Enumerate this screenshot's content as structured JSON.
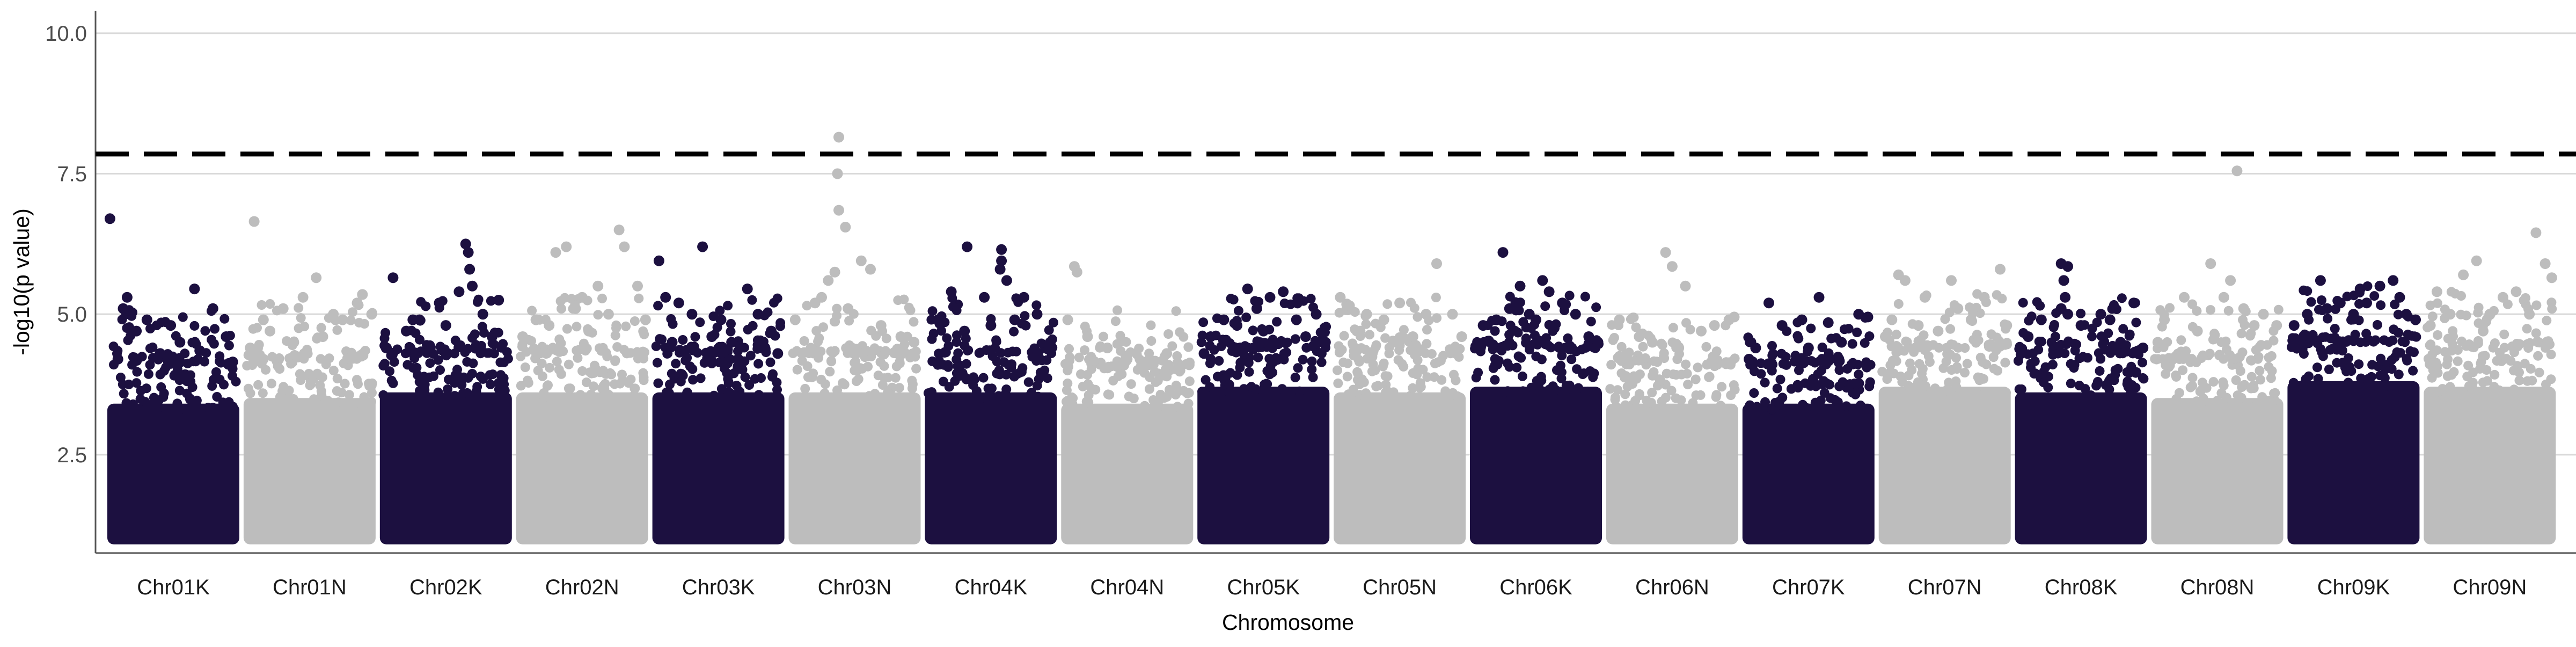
{
  "chart_data": {
    "type": "scatter",
    "title": "",
    "xlabel": "Chromosome",
    "ylabel": "-log10(p value)",
    "ylim": [
      0.75,
      10.4
    ],
    "yticks": [
      2.5,
      5.0,
      7.5,
      10.0
    ],
    "ytick_labels": [
      "2.5",
      "5.0",
      "7.5",
      "10.0"
    ],
    "grid": {
      "horizontal": true,
      "vertical": false
    },
    "legend": "none",
    "colors": {
      "odd": "#1c1040",
      "even": "#bdbdbd",
      "threshold": "#000000",
      "grid": "#d9d9d9",
      "axis": "#555555"
    },
    "threshold": {
      "value": 7.85,
      "style": "dashed"
    },
    "categories": [
      "Chr01K",
      "Chr01N",
      "Chr02K",
      "Chr02N",
      "Chr03K",
      "Chr03N",
      "Chr04K",
      "Chr04N",
      "Chr05K",
      "Chr05N",
      "Chr06K",
      "Chr06N",
      "Chr07K",
      "Chr07N",
      "Chr08K",
      "Chr08N",
      "Chr09K",
      "Chr09N"
    ],
    "series": [
      {
        "chromosome": "Chr01K",
        "min": 1.0,
        "dense_top": 3.6,
        "points": [
          [
            0.02,
            6.7
          ],
          [
            0.15,
            5.3
          ],
          [
            0.12,
            5.1
          ],
          [
            0.3,
            4.9
          ],
          [
            0.48,
            4.8
          ],
          [
            0.66,
            5.45
          ],
          [
            0.8,
            5.1
          ],
          [
            0.9,
            4.6
          ],
          [
            0.55,
            4.5
          ],
          [
            0.22,
            4.7
          ],
          [
            0.4,
            4.3
          ],
          [
            0.7,
            4.35
          ],
          [
            0.08,
            4.2
          ],
          [
            0.95,
            4.15
          ]
        ]
      },
      {
        "chromosome": "Chr01N",
        "min": 1.0,
        "dense_top": 3.7,
        "points": [
          [
            0.08,
            6.65
          ],
          [
            0.15,
            4.9
          ],
          [
            0.3,
            5.1
          ],
          [
            0.45,
            5.3
          ],
          [
            0.55,
            5.65
          ],
          [
            0.68,
            5.0
          ],
          [
            0.75,
            4.9
          ],
          [
            0.86,
            5.2
          ],
          [
            0.9,
            5.35
          ],
          [
            0.97,
            5.0
          ],
          [
            0.2,
            4.7
          ],
          [
            0.6,
            4.6
          ],
          [
            0.38,
            4.5
          ],
          [
            0.05,
            4.4
          ]
        ]
      },
      {
        "chromosome": "Chr02K",
        "min": 1.0,
        "dense_top": 3.8,
        "points": [
          [
            0.1,
            5.65
          ],
          [
            0.3,
            4.9
          ],
          [
            0.45,
            5.2
          ],
          [
            0.6,
            5.4
          ],
          [
            0.65,
            6.25
          ],
          [
            0.67,
            6.1
          ],
          [
            0.68,
            5.8
          ],
          [
            0.7,
            5.5
          ],
          [
            0.78,
            5.0
          ],
          [
            0.9,
            5.25
          ],
          [
            0.2,
            4.7
          ],
          [
            0.25,
            4.9
          ],
          [
            0.5,
            4.8
          ],
          [
            0.85,
            4.6
          ],
          [
            0.05,
            4.4
          ]
        ]
      },
      {
        "chromosome": "Chr02N",
        "min": 1.0,
        "dense_top": 3.8,
        "points": [
          [
            0.3,
            6.1
          ],
          [
            0.38,
            6.2
          ],
          [
            0.5,
            5.3
          ],
          [
            0.62,
            5.5
          ],
          [
            0.78,
            6.5
          ],
          [
            0.82,
            6.2
          ],
          [
            0.92,
            5.5
          ],
          [
            0.15,
            4.9
          ],
          [
            0.45,
            5.1
          ],
          [
            0.7,
            5.0
          ],
          [
            0.98,
            4.9
          ],
          [
            0.05,
            4.6
          ],
          [
            0.55,
            4.7
          ],
          [
            0.25,
            4.8
          ]
        ]
      },
      {
        "chromosome": "Chr03K",
        "min": 1.0,
        "dense_top": 3.8,
        "points": [
          [
            0.05,
            5.95
          ],
          [
            0.38,
            6.2
          ],
          [
            0.1,
            5.3
          ],
          [
            0.2,
            5.2
          ],
          [
            0.3,
            5.0
          ],
          [
            0.52,
            4.9
          ],
          [
            0.72,
            5.45
          ],
          [
            0.8,
            5.0
          ],
          [
            0.9,
            4.7
          ],
          [
            0.15,
            4.5
          ],
          [
            0.45,
            4.6
          ],
          [
            0.6,
            4.5
          ],
          [
            0.95,
            4.3
          ],
          [
            0.65,
            4.2
          ]
        ]
      },
      {
        "chromosome": "Chr03N",
        "min": 1.0,
        "dense_top": 3.8,
        "points": [
          [
            0.38,
            8.15
          ],
          [
            0.37,
            7.5
          ],
          [
            0.38,
            6.85
          ],
          [
            0.43,
            6.55
          ],
          [
            0.35,
            5.75
          ],
          [
            0.3,
            5.6
          ],
          [
            0.55,
            5.95
          ],
          [
            0.62,
            5.8
          ],
          [
            0.2,
            5.2
          ],
          [
            0.25,
            5.3
          ],
          [
            0.45,
            5.1
          ],
          [
            0.05,
            4.9
          ],
          [
            0.7,
            4.8
          ],
          [
            0.85,
            4.6
          ],
          [
            0.95,
            4.5
          ]
        ]
      },
      {
        "chromosome": "Chr04K",
        "min": 1.0,
        "dense_top": 3.8,
        "points": [
          [
            0.32,
            6.2
          ],
          [
            0.58,
            6.15
          ],
          [
            0.58,
            5.95
          ],
          [
            0.57,
            5.8
          ],
          [
            0.62,
            5.6
          ],
          [
            0.2,
            5.4
          ],
          [
            0.45,
            5.3
          ],
          [
            0.75,
            5.3
          ],
          [
            0.85,
            5.0
          ],
          [
            0.1,
            4.9
          ],
          [
            0.3,
            4.7
          ],
          [
            0.5,
            4.8
          ],
          [
            0.68,
            4.9
          ],
          [
            0.95,
            4.5
          ]
        ]
      },
      {
        "chromosome": "Chr04N",
        "min": 1.0,
        "dense_top": 3.6,
        "points": [
          [
            0.1,
            5.85
          ],
          [
            0.12,
            5.75
          ],
          [
            0.05,
            4.9
          ],
          [
            0.2,
            4.6
          ],
          [
            0.35,
            4.4
          ],
          [
            0.5,
            4.2
          ],
          [
            0.65,
            4.1
          ],
          [
            0.8,
            4.3
          ],
          [
            0.9,
            4.0
          ],
          [
            0.97,
            4.1
          ]
        ]
      },
      {
        "chromosome": "Chr05K",
        "min": 1.0,
        "dense_top": 3.9,
        "points": [
          [
            0.38,
            5.45
          ],
          [
            0.45,
            5.1
          ],
          [
            0.55,
            5.3
          ],
          [
            0.65,
            5.4
          ],
          [
            0.9,
            5.0
          ],
          [
            0.2,
            4.9
          ],
          [
            0.3,
            4.8
          ],
          [
            0.75,
            4.9
          ],
          [
            0.1,
            4.6
          ],
          [
            0.5,
            4.7
          ],
          [
            0.82,
            4.6
          ],
          [
            0.97,
            4.5
          ],
          [
            0.05,
            4.3
          ]
        ]
      },
      {
        "chromosome": "Chr05N",
        "min": 1.0,
        "dense_top": 3.8,
        "points": [
          [
            0.05,
            5.3
          ],
          [
            0.12,
            5.15
          ],
          [
            0.25,
            5.0
          ],
          [
            0.38,
            4.9
          ],
          [
            0.5,
            5.2
          ],
          [
            0.7,
            5.0
          ],
          [
            0.78,
            5.9
          ],
          [
            0.9,
            5.0
          ],
          [
            0.2,
            4.7
          ],
          [
            0.6,
            4.6
          ],
          [
            0.97,
            4.6
          ],
          [
            0.45,
            4.5
          ]
        ]
      },
      {
        "chromosome": "Chr06K",
        "min": 1.0,
        "dense_top": 3.9,
        "points": [
          [
            0.25,
            6.1
          ],
          [
            0.38,
            5.5
          ],
          [
            0.55,
            5.6
          ],
          [
            0.6,
            5.4
          ],
          [
            0.3,
            5.1
          ],
          [
            0.45,
            5.0
          ],
          [
            0.7,
            5.2
          ],
          [
            0.8,
            5.0
          ],
          [
            0.1,
            4.8
          ],
          [
            0.2,
            4.9
          ],
          [
            0.5,
            4.9
          ],
          [
            0.9,
            4.6
          ],
          [
            0.97,
            4.5
          ]
        ]
      },
      {
        "chromosome": "Chr06N",
        "min": 1.0,
        "dense_top": 3.6,
        "points": [
          [
            0.45,
            6.1
          ],
          [
            0.5,
            5.85
          ],
          [
            0.1,
            4.9
          ],
          [
            0.25,
            4.6
          ],
          [
            0.6,
            5.5
          ],
          [
            0.35,
            4.5
          ],
          [
            0.72,
            4.7
          ],
          [
            0.82,
            4.8
          ],
          [
            0.93,
            4.9
          ],
          [
            0.97,
            4.95
          ],
          [
            0.55,
            4.4
          ]
        ]
      },
      {
        "chromosome": "Chr07K",
        "min": 1.0,
        "dense_top": 3.6,
        "points": [
          [
            0.2,
            5.2
          ],
          [
            0.58,
            5.3
          ],
          [
            0.45,
            4.9
          ],
          [
            0.3,
            4.8
          ],
          [
            0.65,
            4.85
          ],
          [
            0.88,
            5.0
          ],
          [
            0.95,
            4.95
          ],
          [
            0.1,
            4.4
          ],
          [
            0.5,
            4.4
          ],
          [
            0.75,
            4.5
          ],
          [
            0.05,
            4.2
          ]
        ]
      },
      {
        "chromosome": "Chr07N",
        "min": 1.0,
        "dense_top": 3.9,
        "points": [
          [
            0.15,
            5.7
          ],
          [
            0.2,
            5.6
          ],
          [
            0.35,
            5.3
          ],
          [
            0.55,
            5.6
          ],
          [
            0.6,
            5.1
          ],
          [
            0.8,
            5.3
          ],
          [
            0.92,
            5.8
          ],
          [
            0.1,
            4.9
          ],
          [
            0.3,
            4.8
          ],
          [
            0.45,
            4.7
          ],
          [
            0.7,
            4.9
          ],
          [
            0.97,
            4.8
          ],
          [
            0.05,
            4.6
          ]
        ]
      },
      {
        "chromosome": "Chr08K",
        "min": 1.0,
        "dense_top": 3.8,
        "points": [
          [
            0.35,
            5.9
          ],
          [
            0.4,
            5.85
          ],
          [
            0.37,
            5.6
          ],
          [
            0.38,
            5.3
          ],
          [
            0.35,
            5.1
          ],
          [
            0.4,
            5.0
          ],
          [
            0.2,
            4.9
          ],
          [
            0.5,
            4.8
          ],
          [
            0.65,
            5.0
          ],
          [
            0.72,
            4.9
          ],
          [
            0.9,
            5.2
          ],
          [
            0.1,
            4.6
          ],
          [
            0.8,
            4.5
          ],
          [
            0.97,
            4.4
          ]
        ]
      },
      {
        "chromosome": "Chr08N",
        "min": 1.0,
        "dense_top": 3.7,
        "points": [
          [
            0.65,
            7.55
          ],
          [
            0.45,
            5.9
          ],
          [
            0.6,
            5.6
          ],
          [
            0.25,
            5.3
          ],
          [
            0.55,
            5.3
          ],
          [
            0.7,
            5.1
          ],
          [
            0.85,
            5.0
          ],
          [
            0.1,
            4.9
          ],
          [
            0.35,
            4.7
          ],
          [
            0.78,
            4.8
          ],
          [
            0.95,
            4.8
          ],
          [
            0.05,
            4.5
          ]
        ]
      },
      {
        "chromosome": "Chr09K",
        "min": 1.0,
        "dense_top": 4.0,
        "points": [
          [
            0.25,
            5.6
          ],
          [
            0.55,
            5.45
          ],
          [
            0.7,
            5.5
          ],
          [
            0.8,
            5.6
          ],
          [
            0.85,
            5.3
          ],
          [
            0.4,
            5.2
          ],
          [
            0.6,
            5.2
          ],
          [
            0.15,
            5.0
          ],
          [
            0.3,
            5.1
          ],
          [
            0.5,
            5.0
          ],
          [
            0.9,
            5.0
          ],
          [
            0.97,
            4.9
          ],
          [
            0.05,
            4.8
          ]
        ]
      },
      {
        "chromosome": "Chr09N",
        "min": 1.0,
        "dense_top": 3.9,
        "points": [
          [
            0.85,
            6.45
          ],
          [
            0.4,
            5.95
          ],
          [
            0.3,
            5.7
          ],
          [
            0.92,
            5.9
          ],
          [
            0.1,
            5.4
          ],
          [
            0.6,
            5.3
          ],
          [
            0.7,
            5.4
          ],
          [
            0.97,
            5.65
          ],
          [
            0.2,
            5.0
          ],
          [
            0.5,
            5.0
          ],
          [
            0.8,
            5.0
          ],
          [
            0.05,
            4.8
          ],
          [
            0.45,
            4.7
          ]
        ]
      }
    ]
  }
}
